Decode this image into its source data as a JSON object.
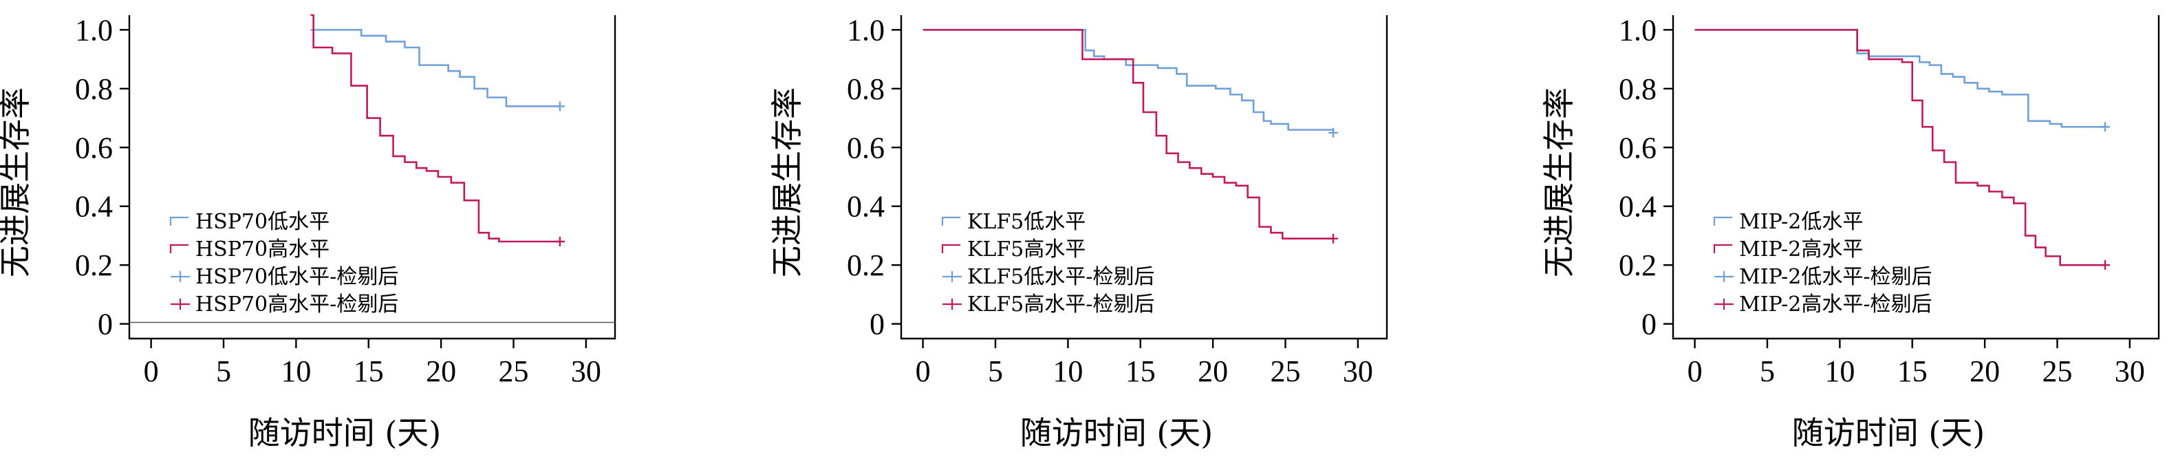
{
  "colors": {
    "low": "#6fa0d8",
    "high": "#c2185b",
    "axis": "#000000"
  },
  "chart_data": [
    {
      "type": "line",
      "title": "",
      "xlabel": "随访时间 (天)",
      "ylabel": "无进展生存率",
      "xlim": [
        -1.5,
        32
      ],
      "ylim": [
        -0.05,
        1.05
      ],
      "xticks": [
        0,
        5,
        10,
        15,
        20,
        25,
        30
      ],
      "xtick_labels": [
        "0",
        "5",
        "10",
        "15",
        "20",
        "25",
        "30"
      ],
      "yticks": [
        0,
        0.2,
        0.4,
        0.6,
        0.8,
        1.0
      ],
      "ytick_labels": [
        "0",
        "0.2",
        "0.4",
        "0.6",
        "0.8",
        "1.0"
      ],
      "legend": [
        "HSP70低水平",
        "HSP70高水平",
        "HSP70低水平-检剔后",
        "HSP70高水平-检剔后"
      ],
      "legend_position": "bottom-left",
      "series": [
        {
          "name": "HSP70低水平",
          "color_key": "low",
          "x": [
            11,
            14.5,
            16.2,
            17.5,
            18.5,
            20.5,
            21.3,
            22.3,
            23.2,
            24.5,
            28.2
          ],
          "y": [
            1.0,
            0.98,
            0.96,
            0.94,
            0.88,
            0.86,
            0.84,
            0.8,
            0.77,
            0.74,
            0.74
          ],
          "censor": [
            [
              28.2,
              0.74
            ]
          ]
        },
        {
          "name": "HSP70高水平",
          "color_key": "high",
          "x": [
            11,
            11.2,
            12.5,
            13.8,
            14.9,
            15.8,
            16.7,
            17.5,
            18.3,
            19.0,
            19.8,
            20.7,
            21.6,
            22.6,
            23.3,
            24.0,
            28.2
          ],
          "y": [
            1.05,
            0.94,
            0.92,
            0.81,
            0.7,
            0.64,
            0.57,
            0.55,
            0.53,
            0.52,
            0.5,
            0.48,
            0.42,
            0.31,
            0.29,
            0.28,
            0.28
          ],
          "censor": [
            [
              28.2,
              0.28
            ]
          ]
        }
      ],
      "hline": 0.005
    },
    {
      "type": "line",
      "title": "",
      "xlabel": "随访时间 (天)",
      "ylabel": "无进展生存率",
      "xlim": [
        -1.5,
        32
      ],
      "ylim": [
        -0.05,
        1.05
      ],
      "xticks": [
        0,
        5,
        10,
        15,
        20,
        25,
        30
      ],
      "xtick_labels": [
        "0",
        "5",
        "10",
        "15",
        "20",
        "25",
        "30"
      ],
      "yticks": [
        0,
        0.2,
        0.4,
        0.6,
        0.8,
        1.0
      ],
      "ytick_labels": [
        "0",
        "0.2",
        "0.4",
        "0.6",
        "0.8",
        "1.0"
      ],
      "legend": [
        "KLF5低水平",
        "KLF5高水平",
        "KLF5低水平-检剔后",
        "KLF5高水平-检剔后"
      ],
      "legend_position": "bottom-left",
      "series": [
        {
          "name": "KLF5低水平",
          "color_key": "low",
          "x": [
            0,
            11.2,
            11.8,
            12.5,
            14.0,
            16.2,
            17.5,
            18.2,
            20.2,
            21.2,
            22.0,
            22.8,
            23.5,
            24.0,
            25.2,
            28.3
          ],
          "y": [
            1.0,
            0.93,
            0.91,
            0.9,
            0.88,
            0.87,
            0.85,
            0.81,
            0.8,
            0.78,
            0.76,
            0.72,
            0.69,
            0.68,
            0.66,
            0.65
          ],
          "censor": [
            [
              28.3,
              0.65
            ]
          ]
        },
        {
          "name": "KLF5高水平",
          "color_key": "high",
          "x": [
            0,
            11.0,
            14.5,
            15.2,
            16.1,
            16.8,
            17.6,
            18.4,
            19.2,
            20.0,
            20.8,
            21.6,
            22.4,
            23.2,
            24.0,
            24.8,
            28.3
          ],
          "y": [
            1.0,
            0.9,
            0.82,
            0.72,
            0.64,
            0.58,
            0.55,
            0.53,
            0.51,
            0.5,
            0.48,
            0.47,
            0.43,
            0.33,
            0.31,
            0.29,
            0.29
          ],
          "censor": [
            [
              28.3,
              0.29
            ]
          ]
        }
      ]
    },
    {
      "type": "line",
      "title": "",
      "xlabel": "随访时间 (天)",
      "ylabel": "无进展生存率",
      "xlim": [
        -1.5,
        32
      ],
      "ylim": [
        -0.05,
        1.05
      ],
      "xticks": [
        0,
        5,
        10,
        15,
        20,
        25,
        30
      ],
      "xtick_labels": [
        "0",
        "5",
        "10",
        "15",
        "20",
        "25",
        "30"
      ],
      "yticks": [
        0,
        0.2,
        0.4,
        0.6,
        0.8,
        1.0
      ],
      "ytick_labels": [
        "0",
        "0.2",
        "0.4",
        "0.6",
        "0.8",
        "1.0"
      ],
      "legend": [
        "MIP-2低水平",
        "MIP-2高水平",
        "MIP-2低水平-检剔后",
        "MIP-2高水平-检剔后"
      ],
      "legend_position": "bottom-left",
      "series": [
        {
          "name": "MIP-2低水平",
          "color_key": "low",
          "x": [
            0,
            11.2,
            12.0,
            14.5,
            15.5,
            16.2,
            17.0,
            17.8,
            18.6,
            19.5,
            20.3,
            21.2,
            22.1,
            23.0,
            24.5,
            25.3,
            28.3
          ],
          "y": [
            1.0,
            0.92,
            0.91,
            0.91,
            0.89,
            0.88,
            0.85,
            0.84,
            0.82,
            0.8,
            0.79,
            0.78,
            0.78,
            0.69,
            0.68,
            0.67,
            0.67
          ],
          "censor": [
            [
              28.3,
              0.67
            ]
          ]
        },
        {
          "name": "MIP-2高水平",
          "color_key": "high",
          "x": [
            0,
            11.2,
            12.0,
            14.3,
            15.0,
            15.7,
            16.4,
            17.2,
            18.0,
            19.5,
            20.3,
            21.2,
            22.0,
            22.8,
            23.5,
            24.2,
            25.2,
            28.3
          ],
          "y": [
            1.0,
            0.93,
            0.9,
            0.89,
            0.76,
            0.67,
            0.59,
            0.55,
            0.48,
            0.47,
            0.45,
            0.43,
            0.41,
            0.3,
            0.26,
            0.23,
            0.2,
            0.2
          ],
          "censor": [
            [
              28.3,
              0.2
            ]
          ]
        }
      ]
    }
  ]
}
